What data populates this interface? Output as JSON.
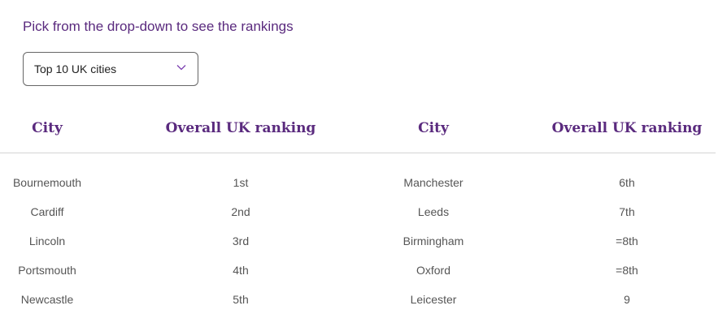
{
  "prompt": "Pick from the drop-down to see the rankings",
  "dropdown": {
    "selected": "Top 10 UK cities",
    "icon": "chevron-down-icon"
  },
  "colors": {
    "accent": "#5a2a7e",
    "text": "#555555"
  },
  "table": {
    "headers": [
      "City",
      "Overall UK ranking",
      "City",
      "Overall UK ranking"
    ],
    "left": [
      {
        "city": "Bournemouth",
        "rank": "1st"
      },
      {
        "city": "Cardiff",
        "rank": "2nd"
      },
      {
        "city": "Lincoln",
        "rank": "3rd"
      },
      {
        "city": "Portsmouth",
        "rank": "4th"
      },
      {
        "city": "Newcastle",
        "rank": "5th"
      }
    ],
    "right": [
      {
        "city": "Manchester",
        "rank": "6th"
      },
      {
        "city": "Leeds",
        "rank": "7th"
      },
      {
        "city": "Birmingham",
        "rank": "=8th"
      },
      {
        "city": "Oxford",
        "rank": "=8th"
      },
      {
        "city": "Leicester",
        "rank": "9"
      }
    ]
  }
}
